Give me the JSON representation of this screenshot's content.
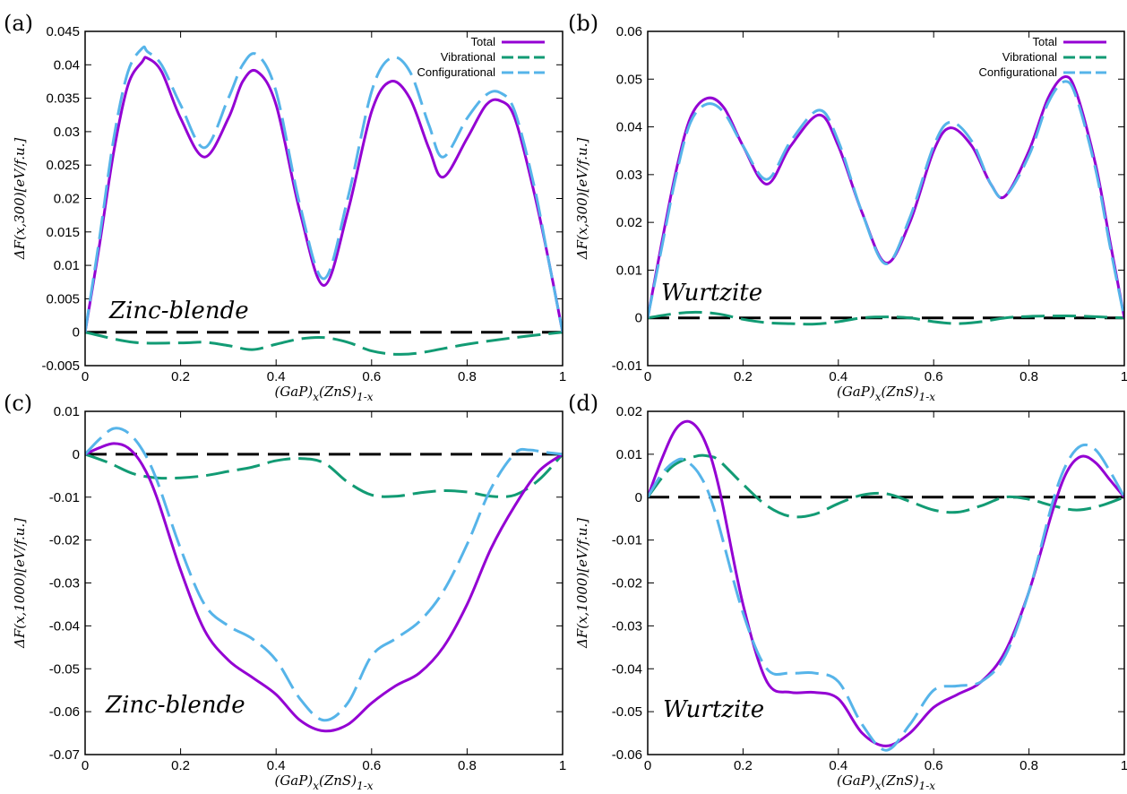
{
  "chart_data": [
    {
      "panel": "(a)",
      "type": "line",
      "annotation": "Zinc-blende",
      "ylabel": "ΔF(x,300)[eV/f.u.]",
      "xlabel": "(GaP)x(ZnS)1-x",
      "xlim": [
        0,
        1
      ],
      "ylim": [
        -0.005,
        0.045
      ],
      "xticks": [
        "0",
        "0.2",
        "0.4",
        "0.6",
        "0.8",
        "1"
      ],
      "yticks": [
        "-0.005",
        "0",
        "0.005",
        "0.01",
        "0.015",
        "0.02",
        "0.025",
        "0.03",
        "0.035",
        "0.04",
        "0.045"
      ],
      "legend": true,
      "legend_position": "top-right",
      "grid": false,
      "series": [
        {
          "name": "Total",
          "color": "#9400D3",
          "dash": "solid",
          "x": [
            0,
            0.03,
            0.06,
            0.09,
            0.12,
            0.13,
            0.16,
            0.2,
            0.25,
            0.3,
            0.33,
            0.36,
            0.4,
            0.45,
            0.5,
            0.55,
            0.6,
            0.64,
            0.68,
            0.72,
            0.75,
            0.8,
            0.84,
            0.87,
            0.9,
            0.94,
            0.97,
            1
          ],
          "y": [
            0,
            0.013,
            0.027,
            0.037,
            0.0405,
            0.041,
            0.039,
            0.032,
            0.0262,
            0.032,
            0.0375,
            0.039,
            0.034,
            0.018,
            0.007,
            0.018,
            0.033,
            0.0375,
            0.035,
            0.0275,
            0.0232,
            0.029,
            0.034,
            0.0346,
            0.032,
            0.021,
            0.011,
            0
          ]
        },
        {
          "name": "Vibrational",
          "color": "#129B74",
          "dash": "dashed",
          "x": [
            0,
            0.1,
            0.2,
            0.25,
            0.3,
            0.35,
            0.4,
            0.45,
            0.5,
            0.55,
            0.6,
            0.65,
            0.7,
            0.8,
            0.9,
            1
          ],
          "y": [
            0,
            -0.0015,
            -0.0016,
            -0.0015,
            -0.002,
            -0.0026,
            -0.0018,
            -0.001,
            -0.0008,
            -0.0015,
            -0.0028,
            -0.0033,
            -0.0031,
            -0.0018,
            -0.0008,
            0
          ]
        },
        {
          "name": "Configurational",
          "color": "#56B4E9",
          "dash": "dashed",
          "x": [
            0,
            0.03,
            0.06,
            0.09,
            0.12,
            0.13,
            0.16,
            0.2,
            0.25,
            0.3,
            0.33,
            0.36,
            0.4,
            0.45,
            0.5,
            0.55,
            0.6,
            0.64,
            0.68,
            0.72,
            0.75,
            0.8,
            0.84,
            0.87,
            0.9,
            0.94,
            0.97,
            1
          ],
          "y": [
            0,
            0.014,
            0.029,
            0.039,
            0.0425,
            0.042,
            0.04,
            0.034,
            0.0276,
            0.035,
            0.04,
            0.0415,
            0.036,
            0.019,
            0.008,
            0.02,
            0.036,
            0.041,
            0.039,
            0.031,
            0.0262,
            0.032,
            0.0355,
            0.0358,
            0.033,
            0.022,
            0.011,
            0
          ]
        }
      ],
      "baseline": {
        "y": 0,
        "color": "#000000",
        "dash": "dashed"
      }
    },
    {
      "panel": "(b)",
      "type": "line",
      "annotation": "Wurtzite",
      "ylabel": "ΔF(x,300)[eV/f.u.]",
      "xlabel": "(GaP)x(ZnS)1-x",
      "xlim": [
        0,
        1
      ],
      "ylim": [
        -0.01,
        0.06
      ],
      "xticks": [
        "0",
        "0.2",
        "0.4",
        "0.6",
        "0.8",
        "1"
      ],
      "yticks": [
        "-0.01",
        "0",
        "0.01",
        "0.02",
        "0.03",
        "0.04",
        "0.05",
        "0.06"
      ],
      "legend": true,
      "legend_position": "top-right",
      "grid": false,
      "series": [
        {
          "name": "Total",
          "color": "#9400D3",
          "dash": "solid",
          "x": [
            0,
            0.03,
            0.06,
            0.09,
            0.125,
            0.16,
            0.2,
            0.25,
            0.3,
            0.36,
            0.4,
            0.45,
            0.5,
            0.55,
            0.6,
            0.635,
            0.68,
            0.72,
            0.75,
            0.8,
            0.84,
            0.875,
            0.9,
            0.94,
            0.97,
            1
          ],
          "y": [
            0,
            0.016,
            0.031,
            0.042,
            0.046,
            0.044,
            0.036,
            0.028,
            0.036,
            0.0425,
            0.036,
            0.022,
            0.0115,
            0.02,
            0.035,
            0.0398,
            0.036,
            0.028,
            0.0255,
            0.035,
            0.046,
            0.0505,
            0.047,
            0.032,
            0.016,
            0
          ]
        },
        {
          "name": "Vibrational",
          "color": "#129B74",
          "dash": "dashed",
          "x": [
            0,
            0.05,
            0.1,
            0.15,
            0.2,
            0.25,
            0.3,
            0.35,
            0.4,
            0.45,
            0.5,
            0.55,
            0.6,
            0.65,
            0.7,
            0.75,
            0.8,
            0.85,
            0.9,
            0.95,
            1
          ],
          "y": [
            0,
            0.0008,
            0.0012,
            0.0008,
            -0.0003,
            -0.001,
            -0.0012,
            -0.0013,
            -0.0008,
            0,
            0.0002,
            0,
            -0.0008,
            -0.0012,
            -0.0008,
            0,
            0.0003,
            0.0004,
            0.0004,
            0.0002,
            0
          ]
        },
        {
          "name": "Configurational",
          "color": "#56B4E9",
          "dash": "dashed",
          "x": [
            0,
            0.03,
            0.06,
            0.09,
            0.125,
            0.16,
            0.2,
            0.25,
            0.3,
            0.36,
            0.4,
            0.45,
            0.5,
            0.55,
            0.6,
            0.635,
            0.68,
            0.72,
            0.75,
            0.8,
            0.84,
            0.875,
            0.9,
            0.94,
            0.97,
            1
          ],
          "y": [
            0,
            0.015,
            0.03,
            0.041,
            0.0448,
            0.043,
            0.036,
            0.029,
            0.037,
            0.0435,
            0.037,
            0.022,
            0.0113,
            0.021,
            0.036,
            0.041,
            0.037,
            0.028,
            0.0255,
            0.034,
            0.045,
            0.0495,
            0.046,
            0.031,
            0.015,
            0
          ]
        }
      ],
      "baseline": {
        "y": 0,
        "color": "#000000",
        "dash": "dashed"
      }
    },
    {
      "panel": "(c)",
      "type": "line",
      "annotation": "Zinc-blende",
      "ylabel": "ΔF(x,1000)[eV/f.u.]",
      "xlabel": "(GaP)x(ZnS)1-x",
      "xlim": [
        0,
        1
      ],
      "ylim": [
        -0.07,
        0.01
      ],
      "xticks": [
        "0",
        "0.2",
        "0.4",
        "0.6",
        "0.8",
        "1"
      ],
      "yticks": [
        "-0.07",
        "-0.06",
        "-0.05",
        "-0.04",
        "-0.03",
        "-0.02",
        "-0.01",
        "0",
        "0.01"
      ],
      "legend": false,
      "grid": false,
      "series": [
        {
          "name": "Total",
          "color": "#9400D3",
          "dash": "solid",
          "x": [
            0,
            0.03,
            0.06,
            0.09,
            0.12,
            0.15,
            0.2,
            0.25,
            0.3,
            0.35,
            0.4,
            0.45,
            0.5,
            0.55,
            0.6,
            0.65,
            0.7,
            0.75,
            0.8,
            0.85,
            0.9,
            0.95,
            1
          ],
          "y": [
            0,
            0.0015,
            0.0025,
            0.0015,
            -0.0025,
            -0.01,
            -0.027,
            -0.041,
            -0.048,
            -0.052,
            -0.056,
            -0.062,
            -0.0645,
            -0.063,
            -0.058,
            -0.054,
            -0.051,
            -0.045,
            -0.035,
            -0.022,
            -0.012,
            -0.004,
            0
          ]
        },
        {
          "name": "Vibrational",
          "color": "#129B74",
          "dash": "dashed",
          "x": [
            0,
            0.05,
            0.1,
            0.15,
            0.2,
            0.25,
            0.3,
            0.35,
            0.4,
            0.45,
            0.5,
            0.55,
            0.6,
            0.65,
            0.7,
            0.75,
            0.8,
            0.85,
            0.9,
            0.95,
            1
          ],
          "y": [
            0,
            -0.002,
            -0.0045,
            -0.0055,
            -0.0055,
            -0.005,
            -0.004,
            -0.003,
            -0.0015,
            -0.001,
            -0.002,
            -0.0065,
            -0.0095,
            -0.0098,
            -0.009,
            -0.0085,
            -0.0088,
            -0.0098,
            -0.0095,
            -0.006,
            0
          ]
        },
        {
          "name": "Configurational",
          "color": "#56B4E9",
          "dash": "dashed",
          "x": [
            0,
            0.03,
            0.06,
            0.09,
            0.12,
            0.15,
            0.2,
            0.25,
            0.3,
            0.35,
            0.4,
            0.45,
            0.5,
            0.55,
            0.6,
            0.65,
            0.7,
            0.75,
            0.8,
            0.85,
            0.9,
            0.93,
            0.96,
            1
          ],
          "y": [
            0,
            0.0035,
            0.006,
            0.005,
            0.001,
            -0.006,
            -0.022,
            -0.035,
            -0.04,
            -0.043,
            -0.048,
            -0.057,
            -0.062,
            -0.058,
            -0.047,
            -0.043,
            -0.039,
            -0.032,
            -0.021,
            -0.008,
            0.0002,
            0.001,
            0.0005,
            0
          ]
        }
      ],
      "baseline": {
        "y": 0,
        "color": "#000000",
        "dash": "dashed"
      }
    },
    {
      "panel": "(d)",
      "type": "line",
      "annotation": "Wurtzite",
      "ylabel": "ΔF(x,1000)[eV/f.u.]",
      "xlabel": "(GaP)x(ZnS)1-x",
      "xlim": [
        0,
        1
      ],
      "ylim": [
        -0.06,
        0.02
      ],
      "xticks": [
        "0",
        "0.2",
        "0.4",
        "0.6",
        "0.8",
        "1"
      ],
      "yticks": [
        "-0.06",
        "-0.05",
        "-0.04",
        "-0.03",
        "-0.02",
        "-0.01",
        "0",
        "0.01",
        "0.02"
      ],
      "legend": false,
      "grid": false,
      "series": [
        {
          "name": "Total",
          "color": "#9400D3",
          "dash": "solid",
          "x": [
            0,
            0.03,
            0.06,
            0.09,
            0.12,
            0.15,
            0.2,
            0.25,
            0.3,
            0.35,
            0.4,
            0.45,
            0.5,
            0.55,
            0.6,
            0.65,
            0.7,
            0.75,
            0.8,
            0.85,
            0.88,
            0.91,
            0.94,
            0.97,
            1
          ],
          "y": [
            0,
            0.009,
            0.016,
            0.0175,
            0.013,
            0.002,
            -0.025,
            -0.043,
            -0.0455,
            -0.0455,
            -0.047,
            -0.055,
            -0.058,
            -0.055,
            -0.049,
            -0.046,
            -0.043,
            -0.036,
            -0.022,
            -0.003,
            0.006,
            0.0095,
            0.008,
            0.004,
            0
          ]
        },
        {
          "name": "Vibrational",
          "color": "#129B74",
          "dash": "dashed",
          "x": [
            0,
            0.05,
            0.1,
            0.13,
            0.15,
            0.2,
            0.25,
            0.3,
            0.35,
            0.4,
            0.45,
            0.5,
            0.55,
            0.6,
            0.65,
            0.7,
            0.75,
            0.8,
            0.85,
            0.9,
            0.95,
            1
          ],
          "y": [
            0,
            0.007,
            0.0095,
            0.0095,
            0.0085,
            0.003,
            -0.002,
            -0.0045,
            -0.004,
            -0.0015,
            0.0005,
            0.0008,
            -0.001,
            -0.003,
            -0.0035,
            -0.002,
            0,
            -0.0005,
            -0.002,
            -0.003,
            -0.002,
            0
          ]
        },
        {
          "name": "Configurational",
          "color": "#56B4E9",
          "dash": "dashed",
          "x": [
            0,
            0.03,
            0.06,
            0.08,
            0.11,
            0.14,
            0.2,
            0.25,
            0.3,
            0.35,
            0.4,
            0.45,
            0.5,
            0.55,
            0.6,
            0.65,
            0.7,
            0.75,
            0.8,
            0.85,
            0.88,
            0.91,
            0.94,
            0.97,
            1
          ],
          "y": [
            0,
            0.0055,
            0.0085,
            0.0085,
            0.005,
            -0.003,
            -0.027,
            -0.04,
            -0.041,
            -0.041,
            -0.043,
            -0.053,
            -0.059,
            -0.053,
            -0.045,
            -0.044,
            -0.043,
            -0.037,
            -0.022,
            -0.001,
            0.008,
            0.012,
            0.011,
            0.006,
            0
          ]
        }
      ],
      "baseline": {
        "y": 0,
        "color": "#000000",
        "dash": "dashed"
      }
    }
  ]
}
